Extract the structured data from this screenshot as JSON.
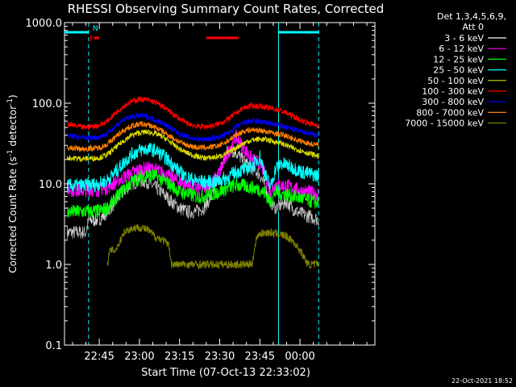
{
  "chart_data": {
    "type": "line",
    "title": "RHESSI Observing Summary Count Rates, Corrected",
    "xlabel": "Start Time (07-Oct-13 22:33:02)",
    "ylabel": "Corrected Count Rate (s",
    "ylabel_sup1": "-1",
    "ylabel_mid": " detector",
    "ylabel_sup2": "-1",
    "ylabel_end": ")",
    "yscale": "log",
    "ylim": [
      0.1,
      1000
    ],
    "ytick_labels": [
      "0.1",
      "1.0",
      "10.0",
      "100.0",
      "1000.0"
    ],
    "ytick_values": [
      0.1,
      1,
      10,
      100,
      1000
    ],
    "xlim_minutes": [
      -13,
      103
    ],
    "xtick_labels": [
      "22:45",
      "23:00",
      "23:15",
      "23:30",
      "23:45",
      "00:00"
    ],
    "xtick_minutes": [
      0,
      15,
      30,
      45,
      60,
      75
    ],
    "legend": {
      "header1": "Det 1,3,4,5,6,9,",
      "header2": "Att 0",
      "placement": "top-right",
      "entries": [
        {
          "label": "3 - 6 keV",
          "color": "#000000"
        },
        {
          "label": "6 - 12 keV",
          "color": "#ff00ff"
        },
        {
          "label": "12 - 25 keV",
          "color": "#00ff00"
        },
        {
          "label": "25 - 50 keV",
          "color": "#00ffff"
        },
        {
          "label": "50 - 100 keV",
          "color": "#d8d800"
        },
        {
          "label": "100 - 300 keV",
          "color": "#ff0000"
        },
        {
          "label": "300 - 800 keV",
          "color": "#0000ff"
        },
        {
          "label": "800 - 7000 keV",
          "color": "#ff7f00"
        },
        {
          "label": "7000 - 15000 keV",
          "color": "#808000"
        }
      ]
    },
    "series": [
      {
        "name": "3 - 6 keV",
        "color": "#000000",
        "x": [
          -12,
          -5,
          -4,
          0,
          3,
          6,
          9,
          12,
          15,
          18,
          21,
          24,
          27,
          30,
          33,
          36,
          39,
          42,
          45,
          48,
          51,
          54,
          57,
          60,
          62,
          64,
          66,
          68,
          70,
          72,
          74,
          76,
          78,
          80,
          82
        ],
        "y": [
          2.5,
          2.5,
          3.5,
          3.6,
          4.5,
          6,
          8,
          10,
          11,
          10.5,
          9,
          7.5,
          6,
          5,
          4.5,
          4.5,
          5,
          7,
          14,
          26,
          25,
          19,
          16,
          13,
          9,
          6,
          5,
          5.5,
          6,
          5,
          4.5,
          4.2,
          4,
          3.8,
          3.6
        ]
      },
      {
        "name": "6 - 12 keV",
        "color": "#ff00ff",
        "x": [
          -12,
          -6,
          0,
          3,
          6,
          9,
          12,
          15,
          18,
          21,
          24,
          27,
          30,
          33,
          36,
          39,
          42,
          45,
          48,
          51,
          54,
          57,
          60,
          62,
          64,
          66,
          68,
          70,
          72,
          74,
          76,
          78,
          80,
          82
        ],
        "y": [
          8.5,
          8.3,
          8.5,
          9,
          10.5,
          12,
          13.5,
          15,
          15.5,
          15,
          13.5,
          12,
          10.5,
          9.5,
          9,
          9,
          10,
          14,
          24,
          38,
          28,
          20,
          18,
          13,
          8,
          10,
          9.5,
          9.5,
          9,
          8.5,
          8,
          8,
          7.5,
          7.5
        ]
      },
      {
        "name": "12 - 25 keV",
        "color": "#00ff00",
        "x": [
          -12,
          -6,
          0,
          3,
          6,
          9,
          12,
          15,
          18,
          21,
          24,
          27,
          30,
          33,
          36,
          39,
          42,
          45,
          48,
          51,
          54,
          57,
          60,
          62,
          64,
          66,
          68,
          70,
          72,
          74,
          76,
          78,
          80,
          82
        ],
        "y": [
          4.5,
          4.5,
          4.6,
          5,
          6.5,
          8.5,
          10.5,
          12,
          13,
          12.5,
          11,
          9.5,
          8,
          7.5,
          7,
          7,
          7.5,
          8,
          9,
          9.5,
          9.5,
          9,
          8.5,
          7.5,
          6,
          8,
          7.5,
          7.5,
          7,
          6.8,
          6.5,
          6.2,
          6,
          5.8
        ]
      },
      {
        "name": "25 - 50 keV",
        "color": "#00ffff",
        "x": [
          -12,
          -6,
          0,
          3,
          6,
          9,
          12,
          15,
          18,
          21,
          24,
          27,
          30,
          33,
          36,
          39,
          42,
          45,
          48,
          51,
          54,
          57,
          60,
          62,
          64,
          66,
          68,
          70,
          72,
          74,
          76,
          78,
          80,
          82
        ],
        "y": [
          9.5,
          9.5,
          10,
          11,
          14,
          18,
          23,
          26,
          27,
          26,
          22,
          18,
          14,
          12,
          11,
          10.5,
          10.5,
          11,
          12,
          14,
          15,
          16,
          22,
          13,
          9,
          16,
          18,
          17,
          16,
          15,
          14,
          13.5,
          13,
          12.5
        ]
      },
      {
        "name": "50 - 100 keV",
        "color": "#d8d800",
        "x": [
          -12,
          -6,
          0,
          3,
          6,
          9,
          12,
          15,
          18,
          21,
          24,
          27,
          30,
          33,
          36,
          39,
          42,
          45,
          48,
          51,
          54,
          57,
          60,
          63,
          66,
          69,
          72,
          75,
          78,
          82
        ],
        "y": [
          21,
          20.5,
          21,
          23,
          28,
          34,
          40,
          43,
          44,
          42,
          38,
          32,
          27,
          24,
          22,
          21,
          21,
          22,
          24,
          28,
          32,
          35,
          36,
          35,
          33,
          31,
          28,
          26,
          24,
          22
        ]
      },
      {
        "name": "100 - 300 keV",
        "color": "#ff0000",
        "x": [
          -12,
          -6,
          0,
          3,
          6,
          9,
          12,
          15,
          18,
          21,
          24,
          27,
          30,
          33,
          36,
          39,
          42,
          45,
          48,
          51,
          54,
          57,
          60,
          63,
          66,
          69,
          72,
          75,
          78,
          82
        ],
        "y": [
          55,
          50,
          53,
          60,
          75,
          92,
          105,
          112,
          110,
          102,
          90,
          76,
          64,
          56,
          52,
          51,
          52,
          56,
          63,
          75,
          88,
          93,
          92,
          88,
          84,
          78,
          70,
          62,
          57,
          53
        ]
      },
      {
        "name": "300 - 800 keV",
        "color": "#0000ff",
        "x": [
          -12,
          -6,
          0,
          3,
          6,
          9,
          12,
          15,
          18,
          21,
          24,
          27,
          30,
          33,
          36,
          39,
          42,
          45,
          48,
          51,
          54,
          57,
          60,
          63,
          66,
          69,
          72,
          75,
          78,
          82
        ],
        "y": [
          40,
          37,
          38,
          42,
          52,
          62,
          68,
          70,
          68,
          62,
          56,
          48,
          42,
          38,
          36,
          35.5,
          36,
          38,
          42,
          50,
          57,
          60,
          59,
          57,
          54,
          51,
          48,
          45,
          43,
          40
        ]
      },
      {
        "name": "800 - 7000 keV",
        "color": "#ff7f00",
        "x": [
          -12,
          -6,
          0,
          3,
          6,
          9,
          12,
          15,
          18,
          21,
          24,
          27,
          30,
          33,
          36,
          39,
          42,
          45,
          48,
          51,
          54,
          57,
          60,
          63,
          66,
          69,
          72,
          75,
          78,
          82
        ],
        "y": [
          28,
          27,
          28,
          31,
          38,
          46,
          52,
          55,
          54,
          50,
          44,
          38,
          33,
          30,
          28.5,
          28,
          28.5,
          30,
          34,
          40,
          45,
          47,
          46,
          44,
          42,
          40,
          37,
          34,
          32,
          30
        ]
      },
      {
        "name": "7000 - 15000 keV",
        "color": "#808000",
        "x": [
          3,
          4,
          6,
          8,
          9,
          12,
          15,
          18,
          21,
          24,
          26,
          27,
          30,
          33,
          36,
          39,
          42,
          45,
          48,
          51,
          54,
          57,
          59,
          60,
          63,
          66,
          69,
          72,
          75,
          78,
          80,
          82
        ],
        "y": [
          1,
          1.5,
          1.5,
          2,
          2.5,
          2.8,
          2.9,
          2.7,
          2.2,
          2,
          1.7,
          1,
          1,
          1,
          1,
          1,
          1,
          1,
          1,
          1,
          1,
          1,
          2.3,
          2.4,
          2.5,
          2.4,
          2.3,
          2,
          1.5,
          1,
          1,
          1
        ]
      }
    ],
    "flag_bars": [
      {
        "label": "N",
        "color": "#00ffff",
        "x_start": -13,
        "x_end": -4
      },
      {
        "label": "",
        "color": "#00ffff",
        "x_start": 67,
        "x_end": 82
      },
      {
        "label": "F",
        "color": "#ff0000",
        "x_start": -2,
        "x_end": 0
      },
      {
        "label": "",
        "color": "#ff0000",
        "x_start": 40,
        "x_end": 52
      }
    ],
    "vlines": [
      {
        "x": -13,
        "color": "#00ffff",
        "style": "solid"
      },
      {
        "x": -4,
        "color": "#00ffff",
        "style": "dashed"
      },
      {
        "x": 67,
        "color": "#00ffff",
        "style": "solid"
      },
      {
        "x": 82,
        "color": "#00ffff",
        "style": "dashed"
      }
    ],
    "grid": false
  },
  "footer": {
    "timestamp": "22-Oct-2021 18:52"
  }
}
